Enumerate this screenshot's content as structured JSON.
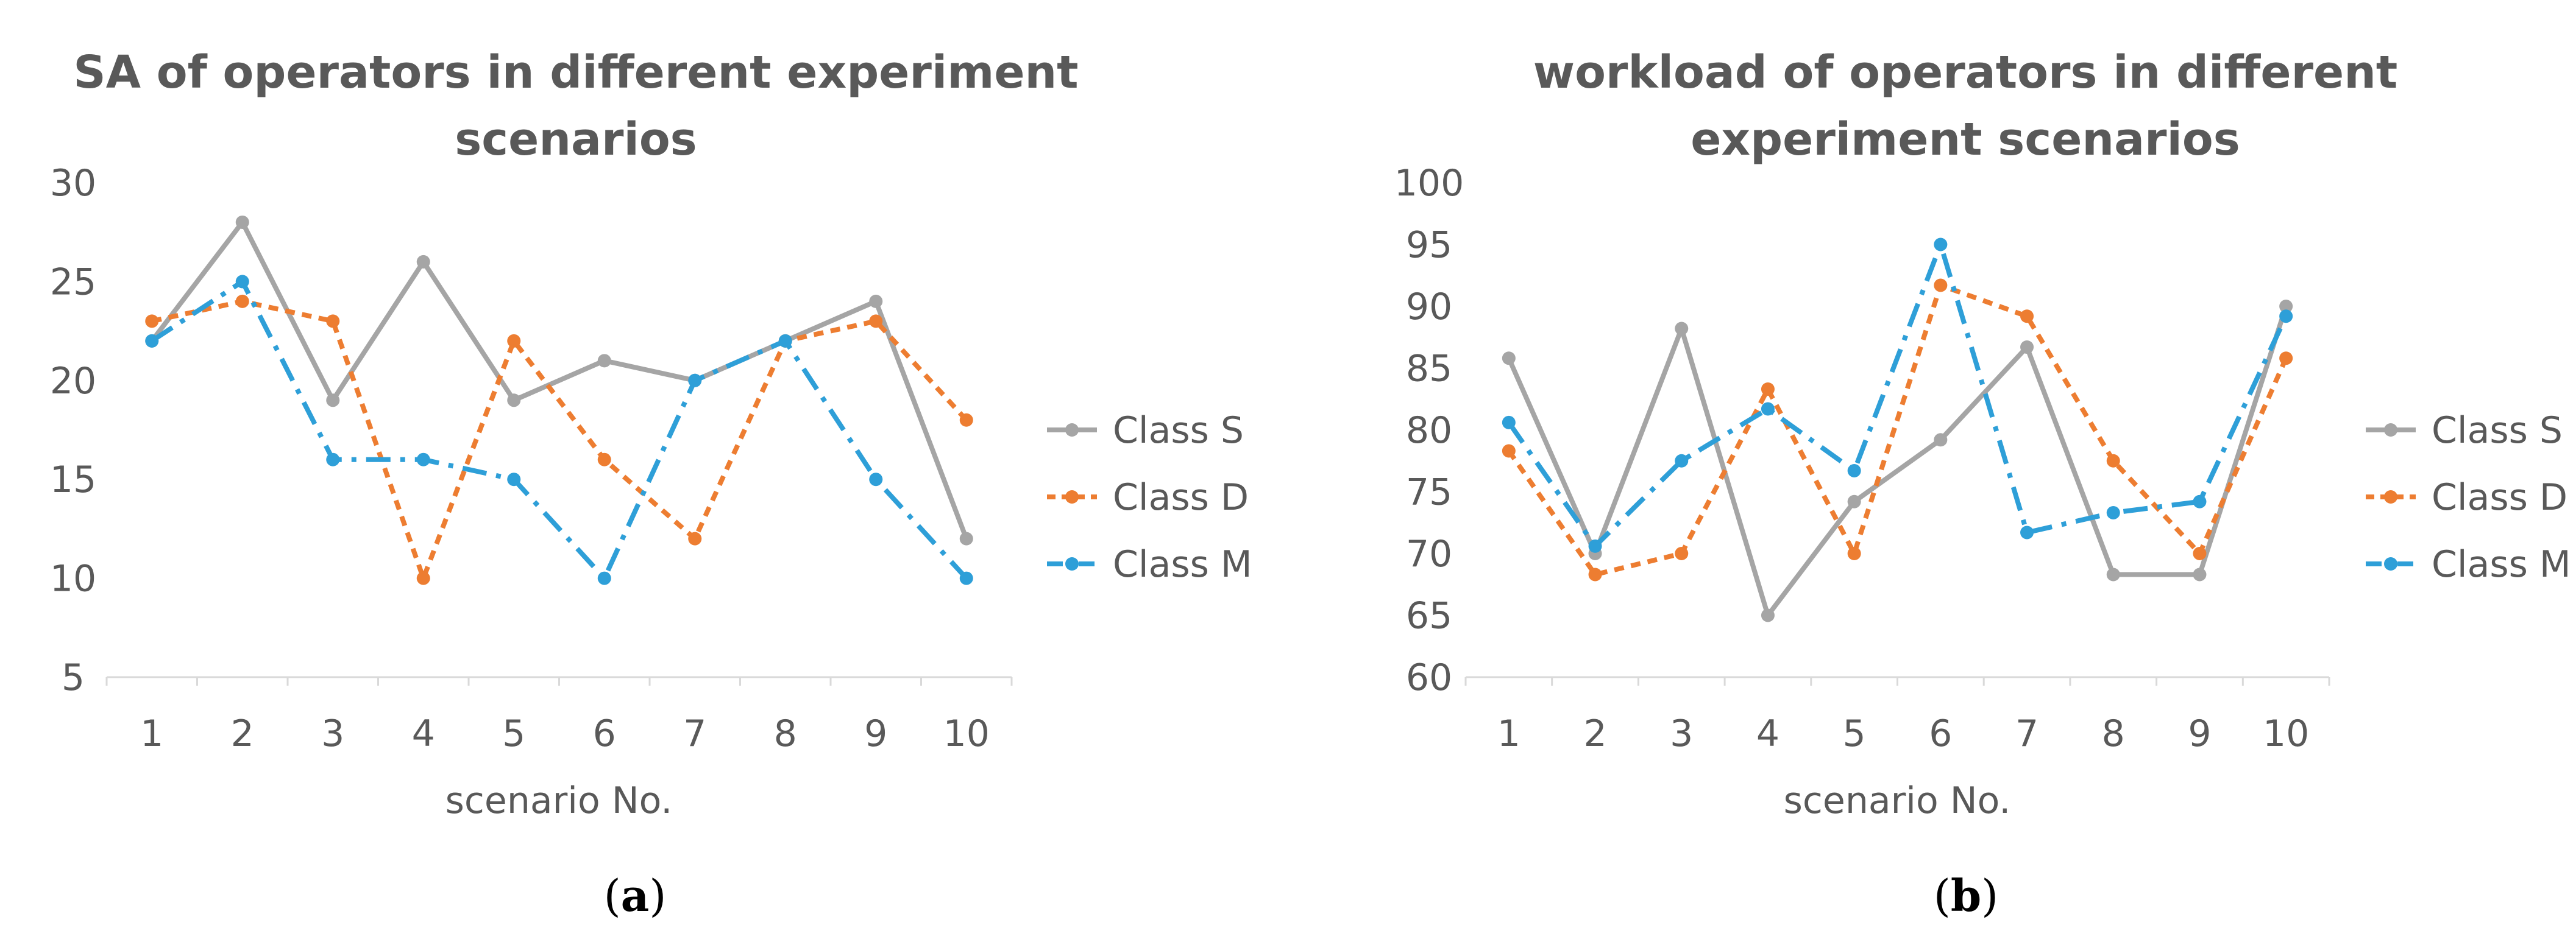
{
  "chart_data": [
    {
      "type": "line",
      "title_lines": [
        "SA of operators in different experiment",
        "scenarios"
      ],
      "xlabel": "scenario No.",
      "ylabel": "",
      "categories": [
        "1",
        "2",
        "3",
        "4",
        "5",
        "6",
        "7",
        "8",
        "9",
        "10"
      ],
      "yticks": [
        "5",
        "10",
        "15",
        "20",
        "25",
        "30"
      ],
      "ylim": [
        5,
        30
      ],
      "grid": false,
      "legend_position": "right",
      "caption_letter": "a",
      "series": [
        {
          "name": "Class S",
          "color": "#a5a5a5",
          "style": "solid",
          "values": [
            22,
            28,
            19,
            26,
            19,
            21,
            20,
            22,
            24,
            12
          ]
        },
        {
          "name": "Class D",
          "color": "#ed7d31",
          "style": "dash",
          "values": [
            23,
            24,
            23,
            10,
            22,
            16,
            12,
            22,
            23,
            18
          ]
        },
        {
          "name": "Class M",
          "color": "#2e9fd8",
          "style": "dashdot",
          "values": [
            22,
            25,
            16,
            16,
            15,
            10,
            20,
            22,
            15,
            10
          ]
        }
      ]
    },
    {
      "type": "line",
      "title_lines": [
        "workload of operators in different",
        "experiment scenarios"
      ],
      "xlabel": "scenario No.",
      "ylabel": "",
      "categories": [
        "1",
        "2",
        "3",
        "4",
        "5",
        "6",
        "7",
        "8",
        "9",
        "10"
      ],
      "yticks": [
        "60",
        "65",
        "70",
        "75",
        "80",
        "85",
        "90",
        "95",
        "100"
      ],
      "ylim": [
        60,
        100
      ],
      "grid": false,
      "legend_position": "right",
      "caption_letter": "b",
      "series": [
        {
          "name": "Class S",
          "color": "#a5a5a5",
          "style": "solid",
          "values": [
            85.8,
            70,
            88.2,
            65,
            74.2,
            79.2,
            86.7,
            68.3,
            68.3,
            90
          ]
        },
        {
          "name": "Class D",
          "color": "#ed7d31",
          "style": "dash",
          "values": [
            78.3,
            68.3,
            70,
            83.3,
            70,
            91.7,
            89.2,
            77.5,
            70,
            85.8
          ]
        },
        {
          "name": "Class M",
          "color": "#2e9fd8",
          "style": "dashdot",
          "values": [
            80.6,
            70.6,
            77.5,
            81.7,
            76.7,
            95,
            71.7,
            73.3,
            74.2,
            89.2
          ]
        }
      ]
    }
  ]
}
